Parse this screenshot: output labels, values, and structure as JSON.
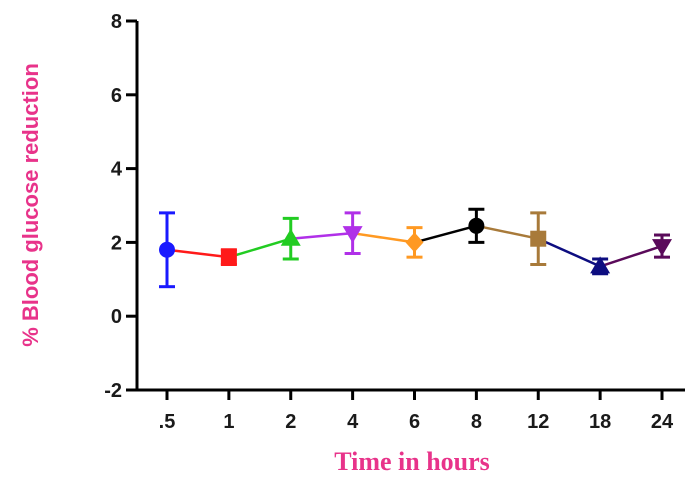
{
  "chart_data": {
    "type": "line",
    "xlabel": "Time in hours",
    "ylabel": "% Blood glucose reduction",
    "ylim": [
      -2,
      8
    ],
    "yticks": [
      -2,
      0,
      2,
      4,
      6,
      8
    ],
    "categories": [
      ".5",
      "1",
      "2",
      "4",
      "6",
      "8",
      "12",
      "18",
      "24"
    ],
    "values": [
      1.8,
      1.6,
      2.1,
      2.25,
      2.0,
      2.45,
      2.1,
      1.35,
      1.9
    ],
    "errors": [
      1.0,
      0.2,
      0.55,
      0.55,
      0.4,
      0.45,
      0.7,
      0.2,
      0.3
    ],
    "markers": [
      "circle",
      "square",
      "triangle-up",
      "triangle-down",
      "diamond",
      "circle",
      "square",
      "triangle-up",
      "triangle-down"
    ],
    "colors": [
      "#1a1aff",
      "#ff1a1a",
      "#22cc22",
      "#b030e8",
      "#ff9922",
      "#000000",
      "#a87a3a",
      "#0d0d80",
      "#5a0a5a"
    ],
    "grid": false,
    "legend": "none"
  }
}
